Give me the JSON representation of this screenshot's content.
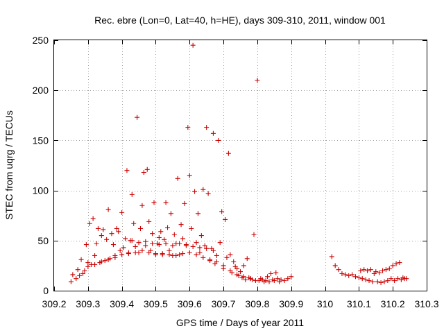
{
  "chart_data": {
    "type": "scatter",
    "title": "Rec. ebre (Lon=0, Lat=40, h=HE), days 309-310, 2011, window 001",
    "xlabel": "GPS time / Days of year 2011",
    "ylabel": "STEC from uqrg / TECUs",
    "xlim": [
      309.2,
      310.3
    ],
    "ylim": [
      0,
      250
    ],
    "xticks": [
      309.2,
      309.3,
      309.4,
      309.5,
      309.6,
      309.7,
      309.8,
      309.9,
      310,
      310.1,
      310.2,
      310.3
    ],
    "xtick_labels": [
      "309.2",
      "309.3",
      "309.4",
      "309.5",
      "309.6",
      "309.7",
      "309.8",
      "309.9",
      "310",
      "310.1",
      "310.2",
      "310.3"
    ],
    "yticks": [
      0,
      50,
      100,
      150,
      200,
      250
    ],
    "ytick_labels": [
      "0",
      "50",
      "100",
      "150",
      "200",
      "250"
    ],
    "grid": true,
    "marker": "+",
    "marker_color": "#cc0000",
    "series": [
      {
        "name": "STEC",
        "points": [
          [
            309.25,
            9
          ],
          [
            309.255,
            16
          ],
          [
            309.265,
            12
          ],
          [
            309.27,
            21
          ],
          [
            309.275,
            15
          ],
          [
            309.28,
            31
          ],
          [
            309.285,
            17
          ],
          [
            309.29,
            20
          ],
          [
            309.295,
            46
          ],
          [
            309.3,
            24
          ],
          [
            309.305,
            67
          ],
          [
            309.31,
            26
          ],
          [
            309.315,
            72
          ],
          [
            309.32,
            35
          ],
          [
            309.325,
            47
          ],
          [
            309.33,
            62
          ],
          [
            309.335,
            28
          ],
          [
            309.34,
            55
          ],
          [
            309.345,
            61
          ],
          [
            309.35,
            30
          ],
          [
            309.355,
            51
          ],
          [
            309.36,
            81
          ],
          [
            309.365,
            32
          ],
          [
            309.37,
            57
          ],
          [
            309.375,
            46
          ],
          [
            309.38,
            35
          ],
          [
            309.385,
            62
          ],
          [
            309.39,
            59
          ],
          [
            309.395,
            40
          ],
          [
            309.4,
            78
          ],
          [
            309.405,
            43
          ],
          [
            309.41,
            52
          ],
          [
            309.415,
            120
          ],
          [
            309.42,
            38
          ],
          [
            309.425,
            50
          ],
          [
            309.43,
            96
          ],
          [
            309.435,
            67
          ],
          [
            309.44,
            44
          ],
          [
            309.445,
            173
          ],
          [
            309.45,
            38
          ],
          [
            309.455,
            62
          ],
          [
            309.46,
            85
          ],
          [
            309.465,
            118
          ],
          [
            309.47,
            45
          ],
          [
            309.475,
            121
          ],
          [
            309.48,
            69
          ],
          [
            309.485,
            40
          ],
          [
            309.49,
            57
          ],
          [
            309.495,
            88
          ],
          [
            309.5,
            36
          ],
          [
            309.505,
            47
          ],
          [
            309.51,
            53
          ],
          [
            309.515,
            59
          ],
          [
            309.52,
            37
          ],
          [
            309.525,
            51
          ],
          [
            309.53,
            88
          ],
          [
            309.535,
            63
          ],
          [
            309.54,
            40
          ],
          [
            309.545,
            77
          ],
          [
            309.55,
            35
          ],
          [
            309.555,
            56
          ],
          [
            309.56,
            47
          ],
          [
            309.565,
            112
          ],
          [
            309.57,
            36
          ],
          [
            309.575,
            66
          ],
          [
            309.58,
            52
          ],
          [
            309.585,
            87
          ],
          [
            309.59,
            45
          ],
          [
            309.595,
            163
          ],
          [
            309.6,
            115
          ],
          [
            309.605,
            62
          ],
          [
            309.61,
            245
          ],
          [
            309.615,
            99
          ],
          [
            309.62,
            48
          ],
          [
            309.625,
            77
          ],
          [
            309.63,
            38
          ],
          [
            309.635,
            55
          ],
          [
            309.64,
            101
          ],
          [
            309.645,
            45
          ],
          [
            309.65,
            163
          ],
          [
            309.655,
            97
          ],
          [
            309.66,
            31
          ],
          [
            309.665,
            42
          ],
          [
            309.67,
            157
          ],
          [
            309.675,
            27
          ],
          [
            309.68,
            35
          ],
          [
            309.685,
            150
          ],
          [
            309.69,
            48
          ],
          [
            309.695,
            79
          ],
          [
            309.7,
            22
          ],
          [
            309.705,
            71
          ],
          [
            309.71,
            33
          ],
          [
            309.715,
            137
          ],
          [
            309.72,
            36
          ],
          [
            309.725,
            18
          ],
          [
            309.73,
            29
          ],
          [
            309.735,
            24
          ],
          [
            309.74,
            22
          ],
          [
            309.745,
            15
          ],
          [
            309.75,
            19
          ],
          [
            309.755,
            13
          ],
          [
            309.76,
            25
          ],
          [
            309.765,
            11
          ],
          [
            309.77,
            32
          ],
          [
            309.775,
            13
          ],
          [
            309.78,
            12
          ],
          [
            309.785,
            11
          ],
          [
            309.79,
            56
          ],
          [
            309.795,
            10
          ],
          [
            309.8,
            210
          ],
          [
            309.805,
            10
          ],
          [
            309.81,
            12
          ],
          [
            309.815,
            11
          ],
          [
            309.82,
            9
          ],
          [
            309.825,
            10
          ],
          [
            309.83,
            14
          ],
          [
            309.835,
            9
          ],
          [
            309.84,
            17
          ],
          [
            309.845,
            11
          ],
          [
            309.85,
            10
          ],
          [
            309.855,
            18
          ],
          [
            309.86,
            12
          ],
          [
            309.865,
            9
          ],
          [
            309.87,
            11
          ],
          [
            309.88,
            10
          ],
          [
            309.89,
            12
          ],
          [
            309.9,
            14
          ],
          [
            309.3,
            28
          ],
          [
            309.32,
            26
          ],
          [
            309.34,
            29
          ],
          [
            309.36,
            31
          ],
          [
            309.38,
            33
          ],
          [
            309.4,
            36
          ],
          [
            309.42,
            37
          ],
          [
            309.44,
            38
          ],
          [
            309.46,
            40
          ],
          [
            309.48,
            38
          ],
          [
            309.5,
            37
          ],
          [
            309.52,
            36
          ],
          [
            309.54,
            36
          ],
          [
            309.56,
            35
          ],
          [
            309.58,
            37
          ],
          [
            309.6,
            38
          ],
          [
            309.62,
            36
          ],
          [
            309.64,
            33
          ],
          [
            309.66,
            30
          ],
          [
            309.68,
            29
          ],
          [
            309.7,
            25
          ],
          [
            309.72,
            20
          ],
          [
            309.74,
            16
          ],
          [
            309.76,
            14
          ],
          [
            309.78,
            12
          ],
          [
            309.43,
            50
          ],
          [
            309.45,
            48
          ],
          [
            309.47,
            49
          ],
          [
            309.49,
            47
          ],
          [
            309.51,
            46
          ],
          [
            309.53,
            47
          ],
          [
            309.55,
            45
          ],
          [
            309.57,
            47
          ],
          [
            309.59,
            46
          ],
          [
            309.61,
            44
          ],
          [
            309.63,
            43
          ],
          [
            309.65,
            42
          ],
          [
            309.67,
            40
          ],
          [
            310.02,
            34
          ],
          [
            310.03,
            25
          ],
          [
            310.04,
            21
          ],
          [
            310.05,
            17
          ],
          [
            310.06,
            16
          ],
          [
            310.07,
            15
          ],
          [
            310.08,
            16
          ],
          [
            310.09,
            14
          ],
          [
            310.1,
            13
          ],
          [
            310.105,
            20
          ],
          [
            310.11,
            12
          ],
          [
            310.115,
            21
          ],
          [
            310.12,
            11
          ],
          [
            310.125,
            20
          ],
          [
            310.13,
            10
          ],
          [
            310.135,
            21
          ],
          [
            310.14,
            9
          ],
          [
            310.145,
            17
          ],
          [
            310.15,
            19
          ],
          [
            310.155,
            9
          ],
          [
            310.16,
            18
          ],
          [
            310.165,
            8
          ],
          [
            310.17,
            20
          ],
          [
            310.175,
            9
          ],
          [
            310.18,
            21
          ],
          [
            310.185,
            10
          ],
          [
            310.19,
            22
          ],
          [
            310.195,
            12
          ],
          [
            310.2,
            25
          ],
          [
            310.205,
            10
          ],
          [
            310.21,
            27
          ],
          [
            310.215,
            12
          ],
          [
            310.22,
            28
          ],
          [
            310.225,
            11
          ],
          [
            310.23,
            13
          ],
          [
            310.235,
            12
          ],
          [
            310.24,
            12
          ]
        ]
      }
    ]
  }
}
